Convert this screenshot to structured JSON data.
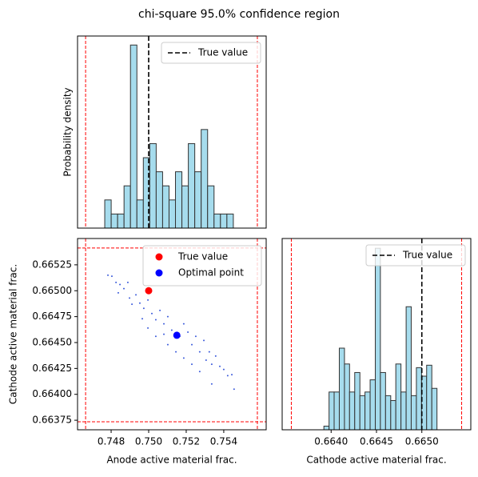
{
  "title": "chi-square 95.0% confidence region",
  "chart_data": [
    {
      "type": "histogram",
      "ylabel": "Probability density",
      "color": "#a6dced",
      "edgecolor": "#333333",
      "bins": [
        0.74766,
        0.748003,
        0.748345,
        0.7486875,
        0.74903,
        0.7493725,
        0.749715,
        0.7500575,
        0.7504,
        0.7507425,
        0.751085,
        0.7514275,
        0.75177,
        0.7521125,
        0.752455,
        0.7527975,
        0.75314,
        0.7534825,
        0.753825,
        0.7541675,
        0.75451
      ],
      "values": [
        2,
        1,
        1,
        3,
        13,
        2,
        5,
        6,
        4,
        3,
        2,
        4,
        3,
        6,
        4,
        7,
        3,
        1,
        1,
        1
      ],
      "xlim": [
        0.74621,
        0.75626
      ],
      "ylim": [
        0,
        13.64
      ],
      "bounds": [
        0.74664,
        0.75579
      ],
      "bound_color": "#ff0000",
      "true_value": 0.75,
      "true_label": "True value",
      "legend": "upper right"
    },
    {
      "type": "scatter",
      "xlabel": "Anode active material frac.",
      "ylabel": "Cathode active material frac.",
      "xlim": [
        0.74621,
        0.75626
      ],
      "ylim": [
        0.663658,
        0.665504
      ],
      "xticks": [
        0.748,
        {
          "value": 0.75,
          "label": "0.750"
        },
        0.752,
        0.754
      ],
      "yticks": [
        {
          "value": 0.66375,
          "label": "0.66375"
        },
        {
          "value": 0.664,
          "label": "0.66400"
        },
        {
          "value": 0.66425,
          "label": "0.66425"
        },
        {
          "value": 0.6645,
          "label": "0.66450"
        },
        {
          "value": 0.66475,
          "label": "0.66475"
        },
        {
          "value": 0.665,
          "label": "0.66500"
        },
        {
          "value": 0.66525,
          "label": "0.66525"
        }
      ],
      "points": {
        "color": "#3b5bdb",
        "x": [
          0.74783,
          0.74804,
          0.74826,
          0.74847,
          0.74868,
          0.74889,
          0.74838,
          0.74898,
          0.74911,
          0.74932,
          0.74953,
          0.74974,
          0.74996,
          0.75017,
          0.74966,
          0.75038,
          0.7506,
          0.75081,
          0.75102,
          0.74996,
          0.75038,
          0.75081,
          0.75123,
          0.75166,
          0.75187,
          0.75209,
          0.7523,
          0.75251,
          0.75272,
          0.75294,
          0.75306,
          0.75323,
          0.75336,
          0.75357,
          0.75379,
          0.754,
          0.75421,
          0.75443,
          0.75455,
          0.7523,
          0.75187,
          0.75272,
          0.75336,
          0.75102,
          0.75145
        ],
        "y": [
          0.66515,
          0.66514,
          0.66508,
          0.66506,
          0.66502,
          0.66508,
          0.66498,
          0.66493,
          0.66487,
          0.66496,
          0.66488,
          0.66483,
          0.66491,
          0.66478,
          0.66473,
          0.66472,
          0.66481,
          0.66468,
          0.66475,
          0.66464,
          0.66456,
          0.66458,
          0.66462,
          0.66456,
          0.66468,
          0.6646,
          0.66448,
          0.66456,
          0.66441,
          0.66452,
          0.66433,
          0.66441,
          0.66429,
          0.66437,
          0.66427,
          0.66424,
          0.66418,
          0.66419,
          0.66405,
          0.66429,
          0.66435,
          0.66422,
          0.6641,
          0.66448,
          0.66441
        ]
      },
      "series": [
        {
          "name": "True value",
          "color": "#ff0000",
          "x": [
            0.75
          ],
          "y": [
            0.665
          ]
        },
        {
          "name": "Optimal point",
          "color": "#0000ff",
          "x": [
            0.7515
          ],
          "y": [
            0.66457
          ]
        }
      ],
      "xbounds": [
        0.74664,
        0.75579
      ],
      "ybounds": [
        0.663735,
        0.665412
      ],
      "bound_color": "#ff0000",
      "legend": "upper right"
    },
    {
      "type": "histogram",
      "xlabel": "Cathode active material frac.",
      "color": "#a6dced",
      "edgecolor": "#333333",
      "bins": [
        0.66392,
        0.663977,
        0.664033,
        0.66409,
        0.664147,
        0.664203,
        0.66426,
        0.664317,
        0.664373,
        0.66443,
        0.664487,
        0.664543,
        0.6646,
        0.664657,
        0.664713,
        0.66477,
        0.664827,
        0.664883,
        0.66494,
        0.664997,
        0.665053,
        0.66511,
        0.665167
      ],
      "values": [
        0.3,
        3.1,
        3.1,
        6.7,
        5.4,
        3.1,
        4.7,
        2.8,
        3.1,
        4.1,
        14.9,
        4.7,
        2.8,
        2.4,
        5.4,
        3.1,
        10.1,
        2.8,
        5.1,
        4.4,
        5.3,
        3.4
      ],
      "xlim": [
        0.66346,
        0.66554
      ],
      "ylim": [
        0,
        15.7
      ],
      "xticks": [
        {
          "value": 0.664,
          "label": "0.6640"
        },
        {
          "value": 0.6645,
          "label": "0.6645"
        },
        {
          "value": 0.665,
          "label": "0.6650"
        }
      ],
      "bounds": [
        0.663561,
        0.665439
      ],
      "bound_color": "#ff0000",
      "true_value": 0.665,
      "true_label": "True value",
      "legend": "upper right"
    }
  ]
}
